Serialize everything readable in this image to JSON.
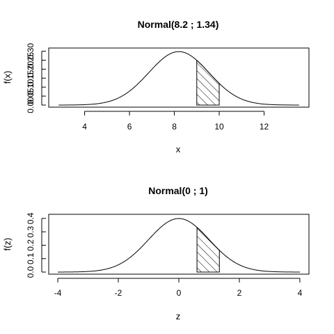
{
  "chart_data": [
    {
      "type": "area",
      "title": "Normal(8.2 ; 1.34)",
      "xlabel": "x",
      "ylabel": "f(x)",
      "mean": 8.2,
      "sd": 1.34,
      "curve_range": [
        2.84,
        13.56
      ],
      "shaded_interval": [
        9,
        10
      ],
      "xlim": [
        2.4,
        14.0
      ],
      "ylim": [
        0,
        0.31
      ],
      "xticks": [
        "4",
        "6",
        "8",
        "10",
        "12"
      ],
      "yticks": [
        "0.00",
        "0.05",
        "0.10",
        "0.15",
        "0.20",
        "0.25",
        "0.30"
      ],
      "grid": false,
      "legend": "none"
    },
    {
      "type": "area",
      "title": "Normal(0 ; 1)",
      "xlabel": "z",
      "ylabel": "f(z)",
      "mean": 0,
      "sd": 1,
      "curve_range": [
        -4,
        4
      ],
      "shaded_interval": [
        0.6,
        1.34
      ],
      "xlim": [
        -4.3,
        4.3
      ],
      "ylim": [
        0,
        0.42
      ],
      "xticks": [
        "-4",
        "-2",
        "0",
        "2",
        "4"
      ],
      "yticks": [
        "0.0",
        "0.1",
        "0.2",
        "0.3",
        "0.4"
      ],
      "grid": false,
      "legend": "none"
    }
  ]
}
